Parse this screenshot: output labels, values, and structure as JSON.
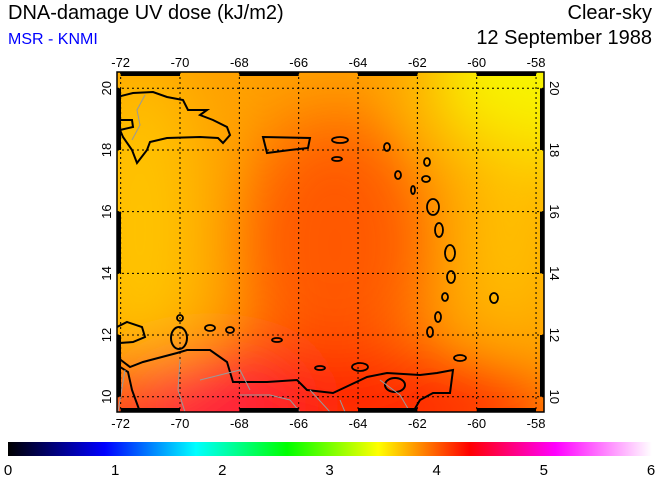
{
  "header": {
    "title": "DNA-damage UV dose (kJ/m2)",
    "source": "MSR - KNMI",
    "condition": "Clear-sky",
    "date": "12 September 1988"
  },
  "map": {
    "lon_ticks": [
      "-72",
      "-70",
      "-68",
      "-66",
      "-64",
      "-62",
      "-60",
      "-58"
    ],
    "lat_ticks": [
      "10",
      "12",
      "14",
      "16",
      "18",
      "20"
    ],
    "lon_range": [
      -72,
      -58
    ],
    "lat_range": [
      9.4,
      20.6
    ],
    "field_colors": {
      "base": "#ffa000",
      "high_north_east": "#f8f400",
      "west": "#ffc400",
      "center": "#ff5800",
      "south": "#ff2400",
      "south_peak": "#ff1050"
    }
  },
  "colorbar": {
    "labels": [
      "0",
      "1",
      "2",
      "3",
      "4",
      "5",
      "6"
    ],
    "range": [
      0,
      6
    ],
    "stops": [
      {
        "v": 0,
        "c": "#000000"
      },
      {
        "v": 0.9,
        "c": "#0000ff"
      },
      {
        "v": 1.75,
        "c": "#00ffff"
      },
      {
        "v": 2.6,
        "c": "#00ff00"
      },
      {
        "v": 3.45,
        "c": "#ffff00"
      },
      {
        "v": 4.3,
        "c": "#ff0000"
      },
      {
        "v": 5.1,
        "c": "#ff00ff"
      },
      {
        "v": 6,
        "c": "#ffffff"
      }
    ]
  }
}
